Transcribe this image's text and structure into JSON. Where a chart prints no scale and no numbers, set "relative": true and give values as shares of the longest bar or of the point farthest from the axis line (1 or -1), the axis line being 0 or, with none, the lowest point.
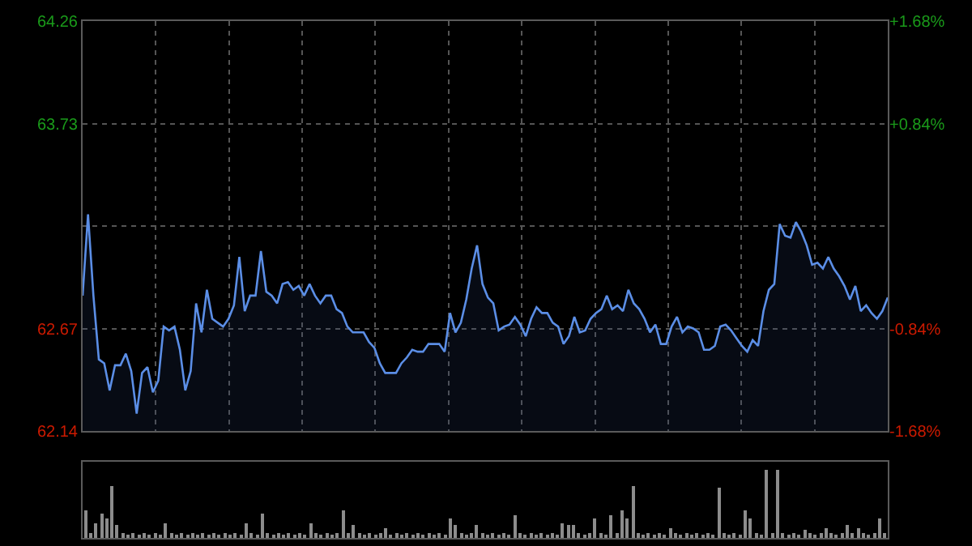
{
  "chart_data": [
    {
      "type": "area",
      "categories": [
        null,
        null,
        null,
        null,
        null,
        null,
        null,
        null,
        null,
        null,
        null,
        null,
        null,
        null,
        null,
        null,
        null,
        null,
        null,
        null,
        null,
        null,
        null,
        null,
        null,
        null,
        null,
        null,
        null,
        null,
        null,
        null,
        null,
        null,
        null,
        null,
        null,
        null,
        null,
        null,
        null,
        null,
        null,
        null,
        null,
        null,
        null,
        null,
        null,
        null,
        null,
        null,
        null,
        null,
        null,
        null,
        null,
        null,
        null,
        null,
        null,
        null,
        null,
        null,
        null,
        null,
        null,
        null,
        null,
        null,
        null,
        null,
        null,
        null,
        null,
        null,
        null,
        null,
        null,
        null,
        null,
        null,
        null,
        null,
        null,
        null,
        null,
        null,
        null,
        null,
        null,
        null,
        null,
        null,
        null,
        null,
        null,
        null,
        null,
        null,
        null,
        null,
        null,
        null,
        null,
        null,
        null,
        null,
        null,
        null,
        null,
        null,
        null,
        null,
        null,
        null,
        null,
        null,
        null,
        null,
        null,
        null,
        null,
        null,
        null,
        null,
        null,
        null,
        null,
        null,
        null,
        null,
        null,
        null,
        null,
        null,
        null,
        null,
        null,
        null,
        null,
        null,
        null,
        null,
        null,
        null,
        null,
        null,
        null,
        null
      ],
      "series": [
        {
          "color": "#5b8ee6",
          "values": [
            62.84,
            63.26,
            62.84,
            62.51,
            62.49,
            62.35,
            62.48,
            62.48,
            62.54,
            62.45,
            62.23,
            62.44,
            62.47,
            62.34,
            62.4,
            62.68,
            62.66,
            62.68,
            62.56,
            62.35,
            62.45,
            62.8,
            62.65,
            62.87,
            62.72,
            62.7,
            62.68,
            62.72,
            62.79,
            63.04,
            62.76,
            62.84,
            62.84,
            63.07,
            62.86,
            62.84,
            62.8,
            62.9,
            62.91,
            62.87,
            62.89,
            62.84,
            62.9,
            62.84,
            62.8,
            62.84,
            62.84,
            62.77,
            62.75,
            62.68,
            62.65,
            62.65,
            62.65,
            62.6,
            62.57,
            62.49,
            62.44,
            62.44,
            62.44,
            62.49,
            62.52,
            62.56,
            62.55,
            62.55,
            62.59,
            62.59,
            62.59,
            62.55,
            62.75,
            62.65,
            62.7,
            62.82,
            62.98,
            63.1,
            62.9,
            62.83,
            62.8,
            62.66,
            62.68,
            62.69,
            62.73,
            62.69,
            62.63,
            62.72,
            62.78,
            62.75,
            62.75,
            62.7,
            62.68,
            62.59,
            62.63,
            62.73,
            62.65,
            62.66,
            62.72,
            62.75,
            62.77,
            62.84,
            62.77,
            62.79,
            62.76,
            62.87,
            62.8,
            62.77,
            62.72,
            62.65,
            62.69,
            62.59,
            62.59,
            62.68,
            62.73,
            62.65,
            62.68,
            62.67,
            62.65,
            62.56,
            62.56,
            62.58,
            62.68,
            62.69,
            62.66,
            62.62,
            62.58,
            62.55,
            62.61,
            62.58,
            62.76,
            62.87,
            62.9,
            63.21,
            63.15,
            63.14,
            63.22,
            63.17,
            63.1,
            63.0,
            63.01,
            62.98,
            63.04,
            62.98,
            62.94,
            62.89,
            62.82,
            62.89,
            62.76,
            62.79,
            62.75,
            62.72,
            62.76,
            62.83
          ]
        }
      ],
      "ylim": [
        62.14,
        64.26
      ],
      "yticks": [
        62.14,
        62.67,
        {
          "value": 63.2,
          "label": null
        },
        63.73,
        64.26
      ],
      "y2lim": [
        -1.68,
        1.68
      ],
      "y2ticks": [
        {
          "value": -1.68,
          "label": "-1.68%"
        },
        {
          "value": -0.84,
          "label": "-0.84%"
        },
        {
          "value": 0,
          "label": null
        },
        {
          "value": 0.84,
          "label": "+0.84%"
        },
        {
          "value": 1.68,
          "label": "+1.68%"
        }
      ],
      "grid": true,
      "tick_labels": "y"
    },
    {
      "type": "bar",
      "relative": true,
      "categories": [
        null,
        null,
        null,
        null,
        null,
        null,
        null,
        null,
        null,
        null,
        null,
        null,
        null,
        null,
        null,
        null,
        null,
        null,
        null,
        null,
        null,
        null,
        null,
        null,
        null,
        null,
        null,
        null,
        null,
        null,
        null,
        null,
        null,
        null,
        null,
        null,
        null,
        null,
        null,
        null,
        null,
        null,
        null,
        null,
        null,
        null,
        null,
        null,
        null,
        null,
        null,
        null,
        null,
        null,
        null,
        null,
        null,
        null,
        null,
        null,
        null,
        null,
        null,
        null,
        null,
        null,
        null,
        null,
        null,
        null,
        null,
        null,
        null,
        null,
        null,
        null,
        null,
        null,
        null,
        null,
        null,
        null,
        null,
        null,
        null,
        null,
        null,
        null,
        null,
        null,
        null,
        null,
        null,
        null,
        null,
        null,
        null,
        null,
        null,
        null,
        null,
        null,
        null,
        null,
        null,
        null,
        null,
        null,
        null,
        null,
        null,
        null,
        null,
        null,
        null,
        null,
        null,
        null,
        null,
        null,
        null,
        null,
        null,
        null,
        null,
        null,
        null,
        null,
        null,
        null,
        null,
        null,
        null,
        null,
        null,
        null,
        null,
        null,
        null,
        null,
        null,
        null,
        null,
        null,
        null,
        null,
        null,
        null,
        null,
        null
      ],
      "color": "#8c8c8c",
      "values": [
        0.41,
        0.07,
        0.22,
        0.37,
        0.28,
        0.78,
        0.19,
        0.07,
        0.05,
        0.07,
        0.05,
        0.07,
        0.05,
        0.07,
        0.05,
        0.22,
        0.07,
        0.05,
        0.07,
        0.05,
        0.07,
        0.05,
        0.07,
        0.05,
        0.07,
        0.05,
        0.07,
        0.05,
        0.07,
        0.05,
        0.22,
        0.07,
        0.05,
        0.37,
        0.07,
        0.05,
        0.07,
        0.05,
        0.07,
        0.05,
        0.07,
        0.05,
        0.22,
        0.07,
        0.05,
        0.07,
        0.05,
        0.07,
        0.41,
        0.07,
        0.19,
        0.07,
        0.05,
        0.07,
        0.05,
        0.07,
        0.15,
        0.05,
        0.07,
        0.05,
        0.07,
        0.05,
        0.07,
        0.05,
        0.07,
        0.05,
        0.07,
        0.05,
        0.28,
        0.19,
        0.07,
        0.05,
        0.07,
        0.19,
        0.07,
        0.05,
        0.07,
        0.05,
        0.07,
        0.05,
        0.33,
        0.07,
        0.05,
        0.07,
        0.05,
        0.07,
        0.05,
        0.07,
        0.05,
        0.22,
        0.19,
        0.19,
        0.07,
        0.05,
        0.07,
        0.28,
        0.07,
        0.05,
        0.33,
        0.07,
        0.41,
        0.28,
        0.78,
        0.07,
        0.05,
        0.07,
        0.05,
        0.07,
        0.05,
        0.15,
        0.07,
        0.05,
        0.07,
        0.05,
        0.07,
        0.05,
        0.07,
        0.05,
        0.74,
        0.07,
        0.05,
        0.07,
        0.05,
        0.41,
        0.28,
        0.07,
        0.05,
        1,
        0.07,
        1,
        0.07,
        0.05,
        0.07,
        0.05,
        0.11,
        0.07,
        0.05,
        0.07,
        0.15,
        0.07,
        0.05,
        0.07,
        0.19,
        0.07,
        0.15,
        0.07,
        0.05,
        0.07,
        0.28,
        0.07
      ],
      "tick_labels": false
    }
  ]
}
